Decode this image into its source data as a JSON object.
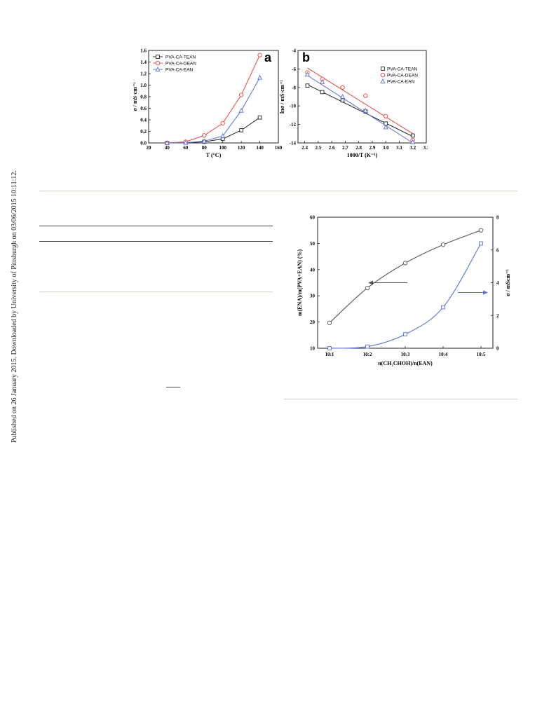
{
  "side_note": "Published on 26 January 2015. Downloaded by University of Pittsburgh on 03/06/2015 10:11:12.",
  "chart_data": [
    {
      "panel": "a",
      "type": "line",
      "xlabel": "T (°C)",
      "ylabel": "σ / mS·cm⁻¹",
      "xlim": [
        20,
        160
      ],
      "ylim": [
        0.0,
        1.6
      ],
      "xticks": [
        "20",
        "40",
        "60",
        "80",
        "100",
        "120",
        "140",
        "160"
      ],
      "yticks": [
        "0.0",
        "0.2",
        "0.4",
        "0.6",
        "0.8",
        "1.0",
        "1.2",
        "1.4",
        "1.6"
      ],
      "legend_position": "top-left",
      "series": [
        {
          "name": "PVA-CA-TEAN",
          "color": "#222222",
          "marker": "square",
          "x": [
            40,
            60,
            80,
            100,
            120,
            140
          ],
          "y": [
            0.0,
            0.005,
            0.02,
            0.07,
            0.22,
            0.44
          ]
        },
        {
          "name": "PVA-CA-DEAN",
          "color": "#e8463c",
          "marker": "circle",
          "x": [
            40,
            60,
            80,
            100,
            120,
            140
          ],
          "y": [
            0.0,
            0.02,
            0.13,
            0.34,
            0.83,
            1.52
          ]
        },
        {
          "name": "PVA-CA-EAN",
          "color": "#5a6fd6",
          "marker": "triangle",
          "x": [
            40,
            60,
            80,
            100,
            120,
            140
          ],
          "y": [
            0.0,
            0.005,
            0.03,
            0.12,
            0.56,
            1.13
          ]
        }
      ]
    },
    {
      "panel": "b",
      "type": "scatter",
      "xlabel": "1000/T (K⁻¹)",
      "ylabel": "lnσ / mS·cm⁻¹",
      "xlim": [
        2.35,
        3.3
      ],
      "ylim": [
        -14,
        -4
      ],
      "xticks": [
        "2.4",
        "2.5",
        "2.6",
        "2.7",
        "2.8",
        "2.9",
        "3.0",
        "3.1",
        "3.2",
        "3.3"
      ],
      "yticks": [
        "-4",
        "-6",
        "-8",
        "-10",
        "-12",
        "-14"
      ],
      "legend_position": "top-right",
      "series": [
        {
          "name": "PVA-CA-TEAN",
          "color": "#222222",
          "marker": "square",
          "x": [
            2.42,
            2.53,
            2.68,
            2.85,
            3.0,
            3.2
          ],
          "y": [
            -7.8,
            -8.5,
            -9.4,
            -10.6,
            -11.9,
            -13.2
          ],
          "fit": [
            [
              2.42,
              -7.7
            ],
            [
              3.2,
              -13.3
            ]
          ]
        },
        {
          "name": "PVA-CA-DEAN",
          "color": "#e8463c",
          "marker": "circle",
          "x": [
            2.42,
            2.53,
            2.68,
            2.85,
            3.0,
            3.2
          ],
          "y": [
            -6.4,
            -7.1,
            -8.0,
            -8.9,
            -11.1,
            -13.7
          ],
          "fit": [
            [
              2.42,
              -5.9
            ],
            [
              3.2,
              -13.0
            ]
          ]
        },
        {
          "name": "PVA-CA-EAN",
          "color": "#5a6fd6",
          "marker": "triangle",
          "x": [
            2.42,
            2.53,
            2.68,
            2.85,
            3.0,
            3.2
          ],
          "y": [
            -6.6,
            -7.4,
            -9.0,
            -10.5,
            -12.3,
            -13.9
          ],
          "fit": [
            [
              2.42,
              -6.7
            ],
            [
              3.2,
              -14.0
            ]
          ]
        }
      ]
    },
    {
      "type": "line",
      "xlabel": "n(CH₂CHOH)/n(EAN)",
      "ylabel_left": "m(ENA)/m(PVA+EAN) (%)",
      "ylabel_right": "σ / mScm⁻¹",
      "categories": [
        "10:1",
        "10:2",
        "10:3",
        "10:4",
        "10:5"
      ],
      "ylim_left": [
        10,
        60
      ],
      "ylim_right": [
        0,
        8
      ],
      "yticks_left": [
        "10",
        "20",
        "30",
        "40",
        "50",
        "60"
      ],
      "yticks_right": [
        "0",
        "2",
        "4",
        "6",
        "8"
      ],
      "series": [
        {
          "axis": "left",
          "color": "#555555",
          "marker": "circle",
          "values": [
            19.7,
            33.0,
            42.5,
            49.5,
            55.0
          ]
        },
        {
          "axis": "right",
          "color": "#5a6fd6",
          "marker": "square",
          "values": [
            0.0,
            0.1,
            0.85,
            2.5,
            6.4
          ]
        }
      ]
    }
  ]
}
